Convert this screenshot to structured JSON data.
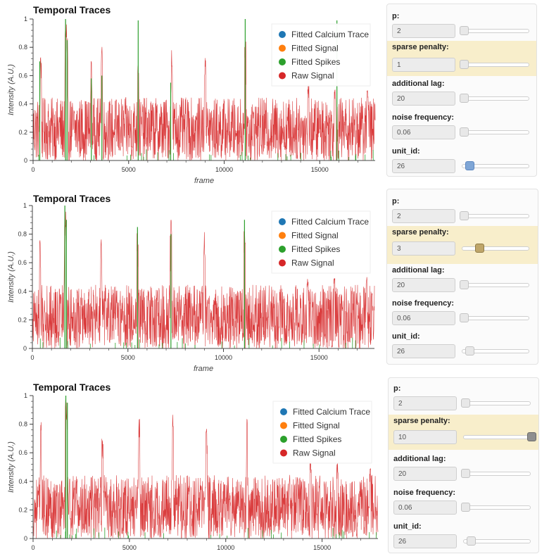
{
  "colors": {
    "calcium": "#1f77b4",
    "signal": "#ff7f0e",
    "spikes": "#2ca02c",
    "raw": "#d62728",
    "highlight": "#f8eecb"
  },
  "panels": [
    {
      "chart_data": {
        "type": "line",
        "title": "Temporal Traces",
        "xlabel": "frame",
        "ylabel": "Intensity (A.U.)",
        "xlim": [
          0,
          17900
        ],
        "ylim": [
          0,
          1
        ],
        "xticks": [
          "0",
          "5000",
          "10000",
          "15000"
        ],
        "yticks": [
          "0",
          "0.2",
          "0.4",
          "0.6",
          "0.8",
          "1"
        ],
        "legend": [
          "Fitted Calcium Trace",
          "Fitted Signal",
          "Fitted Spikes",
          "Raw Signal"
        ],
        "legend_position": "top-right",
        "series": [
          {
            "name": "Raw Signal",
            "baseline_mean": 0.22,
            "noise_range": [
              0.0,
              0.45
            ],
            "peaks": [
              [
                400,
                0.74
              ],
              [
                1700,
                1.0
              ],
              [
                1750,
                0.98
              ],
              [
                1800,
                0.9
              ],
              [
                3050,
                0.75
              ],
              [
                3600,
                0.84
              ],
              [
                5500,
                0.68
              ],
              [
                7250,
                0.78
              ],
              [
                9000,
                0.73
              ],
              [
                11100,
                0.87
              ],
              [
                14400,
                0.55
              ],
              [
                15800,
                0.5
              ],
              [
                17500,
                0.5
              ]
            ]
          },
          {
            "name": "Fitted Spikes",
            "peaks": [
              [
                350,
                0.7
              ],
              [
                1700,
                1.0
              ],
              [
                1780,
                0.85
              ],
              [
                3050,
                0.58
              ],
              [
                3600,
                0.6
              ],
              [
                5500,
                0.99
              ],
              [
                7200,
                0.55
              ],
              [
                11100,
                1.0
              ],
              [
                15900,
                0.99
              ]
            ]
          }
        ]
      },
      "widgets": {
        "p": {
          "label": "p:",
          "value": "2"
        },
        "sparse_penalty": {
          "label": "sparse penalty:",
          "value": "1"
        },
        "additional_lag": {
          "label": "additional lag:",
          "value": "20"
        },
        "noise_frequency": {
          "label": "noise frequency:",
          "value": "0.06"
        },
        "unit_id": {
          "label": "unit_id:",
          "value": "26"
        }
      }
    },
    {
      "chart_data": {
        "type": "line",
        "title": "Temporal Traces",
        "xlabel": "frame",
        "ylabel": "Intensity (A.U.)",
        "xlim": [
          0,
          17900
        ],
        "ylim": [
          0,
          1
        ],
        "xticks": [
          "0",
          "5000",
          "10000",
          "15000"
        ],
        "yticks": [
          "0",
          "0.2",
          "0.4",
          "0.6",
          "0.8",
          "1"
        ],
        "legend": [
          "Fitted Calcium Trace",
          "Fitted Signal",
          "Fitted Spikes",
          "Raw Signal"
        ],
        "legend_position": "top-right",
        "series": [
          {
            "name": "Raw Signal",
            "baseline_mean": 0.22,
            "noise_range": [
              0.0,
              0.45
            ],
            "peaks": [
              [
                400,
                0.8
              ],
              [
                1700,
                1.0
              ],
              [
                1750,
                0.98
              ],
              [
                3600,
                0.79
              ],
              [
                5500,
                0.84
              ],
              [
                7250,
                0.9
              ],
              [
                9000,
                0.82
              ],
              [
                11100,
                0.86
              ],
              [
                14400,
                0.5
              ],
              [
                15800,
                0.5
              ],
              [
                17500,
                0.5
              ]
            ]
          },
          {
            "name": "Fitted Spikes",
            "peaks": [
              [
                1700,
                1.0
              ],
              [
                1780,
                0.9
              ],
              [
                5500,
                0.85
              ],
              [
                7250,
                0.8
              ],
              [
                11100,
                0.9
              ]
            ]
          }
        ]
      },
      "widgets": {
        "p": {
          "label": "p:",
          "value": "2"
        },
        "sparse_penalty": {
          "label": "sparse penalty:",
          "value": "3"
        },
        "additional_lag": {
          "label": "additional lag:",
          "value": "20"
        },
        "noise_frequency": {
          "label": "noise frequency:",
          "value": "0.06"
        },
        "unit_id": {
          "label": "unit_id:",
          "value": "26"
        }
      }
    },
    {
      "chart_data": {
        "type": "line",
        "title": "Temporal Traces",
        "xlabel": "",
        "ylabel": "Intensity (A.U.)",
        "xlim": [
          0,
          17900
        ],
        "ylim": [
          0,
          1
        ],
        "xticks": [
          "0",
          "5000",
          "10000",
          "15000"
        ],
        "yticks": [
          "0",
          "0.2",
          "0.4",
          "0.6",
          "0.8",
          "1"
        ],
        "legend": [
          "Fitted Calcium Trace",
          "Fitted Signal",
          "Fitted Spikes",
          "Raw Signal"
        ],
        "legend_position": "top-right",
        "series": [
          {
            "name": "Raw Signal",
            "baseline_mean": 0.22,
            "noise_range": [
              0.0,
              0.45
            ],
            "peaks": [
              [
                400,
                0.82
              ],
              [
                1700,
                1.0
              ],
              [
                1750,
                0.98
              ],
              [
                3600,
                0.7
              ],
              [
                5500,
                0.84
              ],
              [
                7250,
                0.87
              ],
              [
                9000,
                0.78
              ],
              [
                11100,
                0.85
              ],
              [
                14400,
                0.55
              ],
              [
                15800,
                0.55
              ],
              [
                17500,
                0.5
              ]
            ]
          },
          {
            "name": "Fitted Spikes",
            "peaks": [
              [
                1700,
                1.0
              ],
              [
                1780,
                0.95
              ]
            ]
          }
        ]
      },
      "widgets": {
        "p": {
          "label": "p:",
          "value": "2"
        },
        "sparse_penalty": {
          "label": "sparse penalty:",
          "value": "10"
        },
        "additional_lag": {
          "label": "additional lag:",
          "value": "20"
        },
        "noise_frequency": {
          "label": "noise frequency:",
          "value": "0.06"
        },
        "unit_id": {
          "label": "unit_id:",
          "value": "26"
        }
      }
    }
  ]
}
